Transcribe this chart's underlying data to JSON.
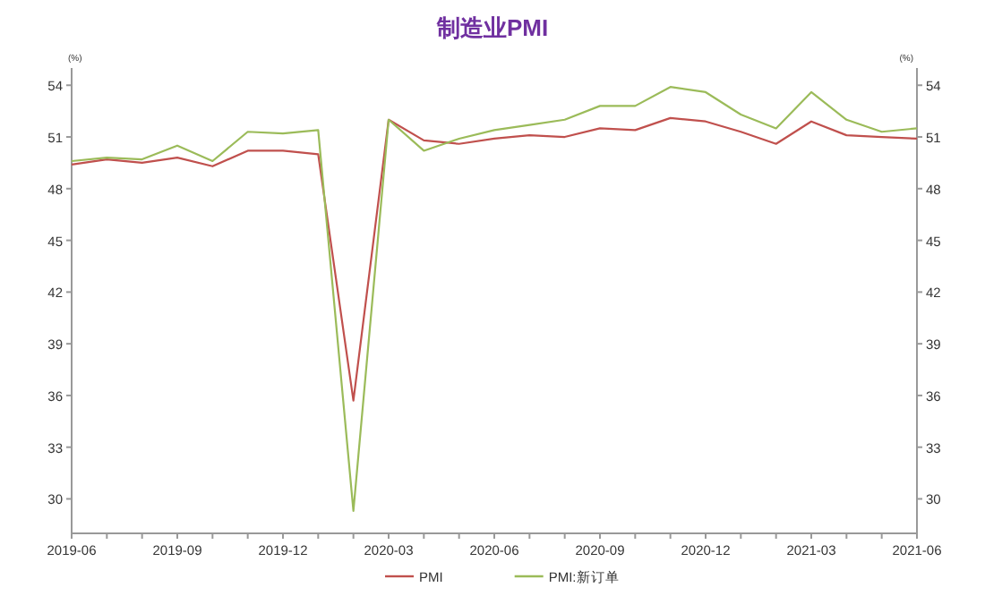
{
  "chart_data": {
    "type": "line",
    "title": "制造业PMI",
    "ylabel": "(%)",
    "y2label": "(%)",
    "x": [
      "2019-06",
      "2019-07",
      "2019-08",
      "2019-09",
      "2019-10",
      "2019-11",
      "2019-12",
      "2020-01",
      "2020-02",
      "2020-03",
      "2020-04",
      "2020-05",
      "2020-06",
      "2020-07",
      "2020-08",
      "2020-09",
      "2020-10",
      "2020-11",
      "2020-12",
      "2021-01",
      "2021-02",
      "2021-03",
      "2021-04",
      "2021-05",
      "2021-06"
    ],
    "series": [
      {
        "name": "PMI",
        "color": "#c0504d",
        "values": [
          49.4,
          49.7,
          49.5,
          49.8,
          49.3,
          50.2,
          50.2,
          50.0,
          35.7,
          52.0,
          50.8,
          50.6,
          50.9,
          51.1,
          51.0,
          51.5,
          51.4,
          52.1,
          51.9,
          51.3,
          50.6,
          51.9,
          51.1,
          51.0,
          50.9
        ]
      },
      {
        "name": "PMI:新订单",
        "color": "#9bbb59",
        "values": [
          49.6,
          49.8,
          49.7,
          50.5,
          49.6,
          51.3,
          51.2,
          51.4,
          29.3,
          52.0,
          50.2,
          50.9,
          51.4,
          51.7,
          52.0,
          52.8,
          52.8,
          53.9,
          53.6,
          52.3,
          51.5,
          53.6,
          52.0,
          51.3,
          51.5
        ]
      }
    ],
    "xlim": [
      "2019-06",
      "2021-06"
    ],
    "xticks": [
      "2019-06",
      "2019-09",
      "2019-12",
      "2020-03",
      "2020-06",
      "2020-09",
      "2020-12",
      "2021-03",
      "2021-06"
    ],
    "ylim": [
      28,
      55
    ],
    "yticks": [
      30,
      33,
      36,
      39,
      42,
      45,
      48,
      51,
      54
    ],
    "y2lim": [
      28,
      55
    ],
    "y2ticks": [
      30,
      33,
      36,
      39,
      42,
      45,
      48,
      51,
      54
    ],
    "grid": false,
    "legend": "bottom",
    "line_style": "solid"
  }
}
